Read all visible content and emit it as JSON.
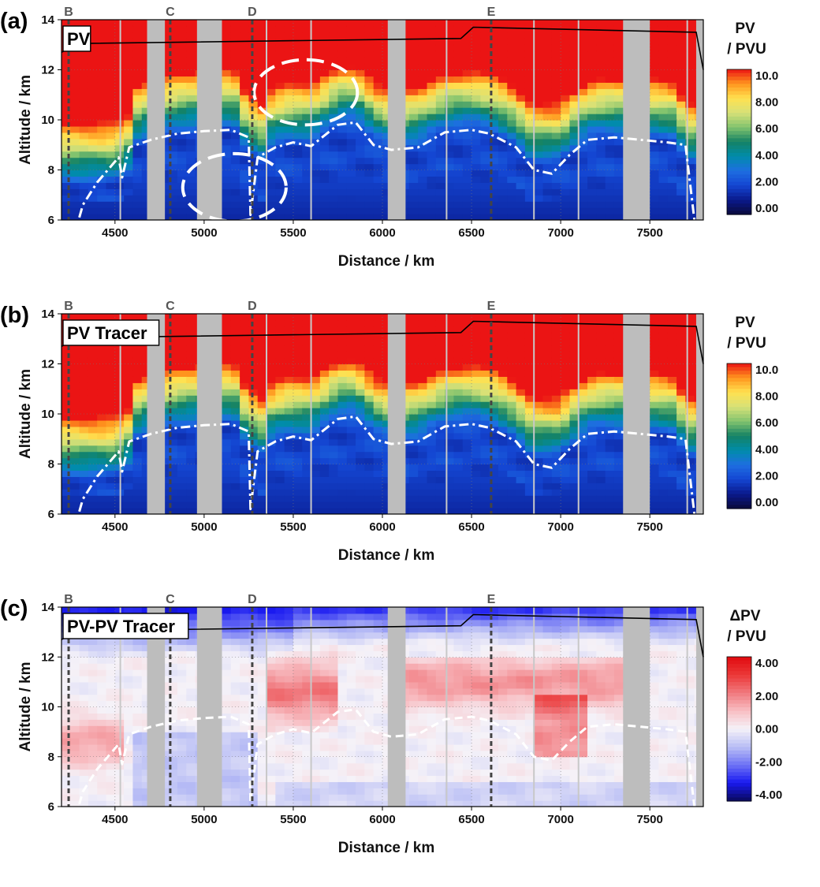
{
  "chart_data": [
    {
      "type": "heatmap",
      "panel_label": "(a)",
      "inset_title": "PV",
      "quantity": "pv",
      "xlabel": "Distance / km",
      "ylabel": "Altitude / km",
      "xlim": [
        4200,
        7800
      ],
      "ylim": [
        6,
        14
      ],
      "xticks": [
        4500,
        5000,
        5500,
        6000,
        6500,
        7000,
        7500
      ],
      "yticks": [
        6,
        8,
        10,
        12,
        14
      ],
      "colorbar": {
        "title_line1": "PV",
        "title_line2": "/ PVU",
        "tick_labels": [
          "10.0",
          "8.00",
          "6.00",
          "4.00",
          "2.00",
          "0.00"
        ],
        "range": [
          0,
          10
        ]
      },
      "markers": [
        {
          "label": "B",
          "x": 4240
        },
        {
          "label": "C",
          "x": 4810
        },
        {
          "label": "D",
          "x": 5270
        },
        {
          "label": "E",
          "x": 6610
        }
      ],
      "gray_gaps": [
        [
          4680,
          4780
        ],
        [
          4960,
          5100
        ],
        [
          6030,
          6130
        ],
        [
          7350,
          7500
        ],
        [
          7760,
          7800
        ]
      ],
      "thin_lines_x": [
        4530,
        5350,
        5600,
        6360,
        6850,
        7100,
        7710
      ],
      "black_line": {
        "x": [
          4200,
          4300,
          6440,
          6510,
          7760,
          7800
        ],
        "y": [
          12.7,
          13.05,
          13.25,
          13.7,
          13.5,
          12.0
        ]
      },
      "tropopause_2pvu": {
        "x": [
          4300,
          4320,
          4400,
          4520,
          4540,
          4580,
          4700,
          4850,
          5000,
          5150,
          5250,
          5260,
          5300,
          5400,
          5500,
          5600,
          5750,
          5850,
          5950,
          6050,
          6200,
          6350,
          6500,
          6600,
          6750,
          6850,
          6950,
          7050,
          7150,
          7300,
          7450,
          7600,
          7700,
          7750
        ],
        "y": [
          6.1,
          6.6,
          7.5,
          8.5,
          7.7,
          8.9,
          9.2,
          9.45,
          9.55,
          9.6,
          9.3,
          6.2,
          8.5,
          8.9,
          9.1,
          8.95,
          9.8,
          9.9,
          9.0,
          8.8,
          8.9,
          9.5,
          9.6,
          9.45,
          8.9,
          8.0,
          7.85,
          8.6,
          9.2,
          9.3,
          9.2,
          9.1,
          9.0,
          6.0
        ]
      },
      "annotations": [
        {
          "kind": "dashed-ellipse",
          "cx": 5570,
          "cy": 11.1,
          "rx": 290,
          "ry": 1.3
        },
        {
          "kind": "dashed-ellipse",
          "cx": 5170,
          "cy": 7.3,
          "rx": 290,
          "ry": 1.35
        }
      ]
    },
    {
      "type": "heatmap",
      "panel_label": "(b)",
      "inset_title": "PV Tracer",
      "quantity": "pv",
      "xlabel": "Distance / km",
      "ylabel": "Altitude / km",
      "xlim": [
        4200,
        7800
      ],
      "ylim": [
        6,
        14
      ],
      "xticks": [
        4500,
        5000,
        5500,
        6000,
        6500,
        7000,
        7500
      ],
      "yticks": [
        6,
        8,
        10,
        12,
        14
      ],
      "colorbar": {
        "title_line1": "PV",
        "title_line2": "/ PVU",
        "tick_labels": [
          "10.0",
          "8.00",
          "6.00",
          "4.00",
          "2.00",
          "0.00"
        ],
        "range": [
          0,
          10
        ]
      },
      "markers": [
        {
          "label": "B",
          "x": 4240
        },
        {
          "label": "C",
          "x": 4810
        },
        {
          "label": "D",
          "x": 5270
        },
        {
          "label": "E",
          "x": 6610
        }
      ],
      "gray_gaps": [
        [
          4680,
          4780
        ],
        [
          4960,
          5100
        ],
        [
          6030,
          6130
        ],
        [
          7350,
          7500
        ],
        [
          7760,
          7800
        ]
      ],
      "thin_lines_x": [
        4530,
        5350,
        5600,
        6360,
        6850,
        7100,
        7710
      ],
      "black_line": {
        "x": [
          4200,
          4300,
          6440,
          6510,
          7760,
          7800
        ],
        "y": [
          12.7,
          13.05,
          13.25,
          13.7,
          13.5,
          12.0
        ]
      },
      "tropopause_2pvu": {
        "x": [
          4300,
          4320,
          4400,
          4520,
          4540,
          4580,
          4700,
          4850,
          5000,
          5150,
          5250,
          5260,
          5300,
          5400,
          5500,
          5600,
          5750,
          5850,
          5950,
          6050,
          6200,
          6350,
          6500,
          6600,
          6750,
          6850,
          6950,
          7050,
          7150,
          7300,
          7450,
          7600,
          7700,
          7750
        ],
        "y": [
          6.1,
          6.6,
          7.5,
          8.5,
          7.7,
          8.9,
          9.2,
          9.45,
          9.55,
          9.6,
          9.3,
          6.2,
          8.5,
          8.9,
          9.1,
          8.95,
          9.8,
          9.9,
          9.0,
          8.8,
          8.9,
          9.5,
          9.6,
          9.45,
          8.9,
          8.0,
          7.85,
          8.6,
          9.2,
          9.3,
          9.2,
          9.1,
          9.0,
          6.0
        ]
      },
      "annotations": []
    },
    {
      "type": "heatmap",
      "panel_label": "(c)",
      "inset_title": "PV-PV Tracer",
      "quantity": "dpv",
      "xlabel": "Distance / km",
      "ylabel": "Altitude / km",
      "xlim": [
        4200,
        7800
      ],
      "ylim": [
        6,
        14
      ],
      "xticks": [
        4500,
        5000,
        5500,
        6000,
        6500,
        7000,
        7500
      ],
      "yticks": [
        6,
        8,
        10,
        12,
        14
      ],
      "colorbar": {
        "title_line1": "ΔPV",
        "title_line2": "/ PVU",
        "tick_labels": [
          "4.00",
          "2.00",
          "0.00",
          "-2.00",
          "-4.00"
        ],
        "range": [
          -4,
          4
        ]
      },
      "markers": [
        {
          "label": "B",
          "x": 4240
        },
        {
          "label": "C",
          "x": 4810
        },
        {
          "label": "D",
          "x": 5270
        },
        {
          "label": "E",
          "x": 6610
        }
      ],
      "gray_gaps": [
        [
          4680,
          4780
        ],
        [
          4960,
          5100
        ],
        [
          6030,
          6130
        ],
        [
          7350,
          7500
        ],
        [
          7760,
          7800
        ]
      ],
      "thin_lines_x": [
        4530,
        5350,
        5600,
        6360,
        6850,
        7100,
        7710
      ],
      "black_line": {
        "x": [
          4200,
          4300,
          6440,
          6510,
          7760,
          7800
        ],
        "y": [
          12.7,
          13.05,
          13.25,
          13.7,
          13.5,
          12.0
        ]
      },
      "tropopause_2pvu": {
        "x": [
          4300,
          4320,
          4400,
          4520,
          4540,
          4580,
          4700,
          4850,
          5000,
          5150,
          5250,
          5260,
          5300,
          5400,
          5500,
          5600,
          5750,
          5850,
          5950,
          6050,
          6200,
          6350,
          6500,
          6600,
          6750,
          6850,
          6950,
          7050,
          7150,
          7300,
          7450,
          7600,
          7700,
          7750
        ],
        "y": [
          6.1,
          6.6,
          7.5,
          8.5,
          7.7,
          8.9,
          9.2,
          9.45,
          9.55,
          9.6,
          9.3,
          6.2,
          8.5,
          8.9,
          9.1,
          8.95,
          9.8,
          9.9,
          9.0,
          8.8,
          8.9,
          9.5,
          9.6,
          9.45,
          8.9,
          8.0,
          7.85,
          8.6,
          9.2,
          9.3,
          9.2,
          9.1,
          9.0,
          6.0
        ]
      },
      "annotations": []
    }
  ]
}
